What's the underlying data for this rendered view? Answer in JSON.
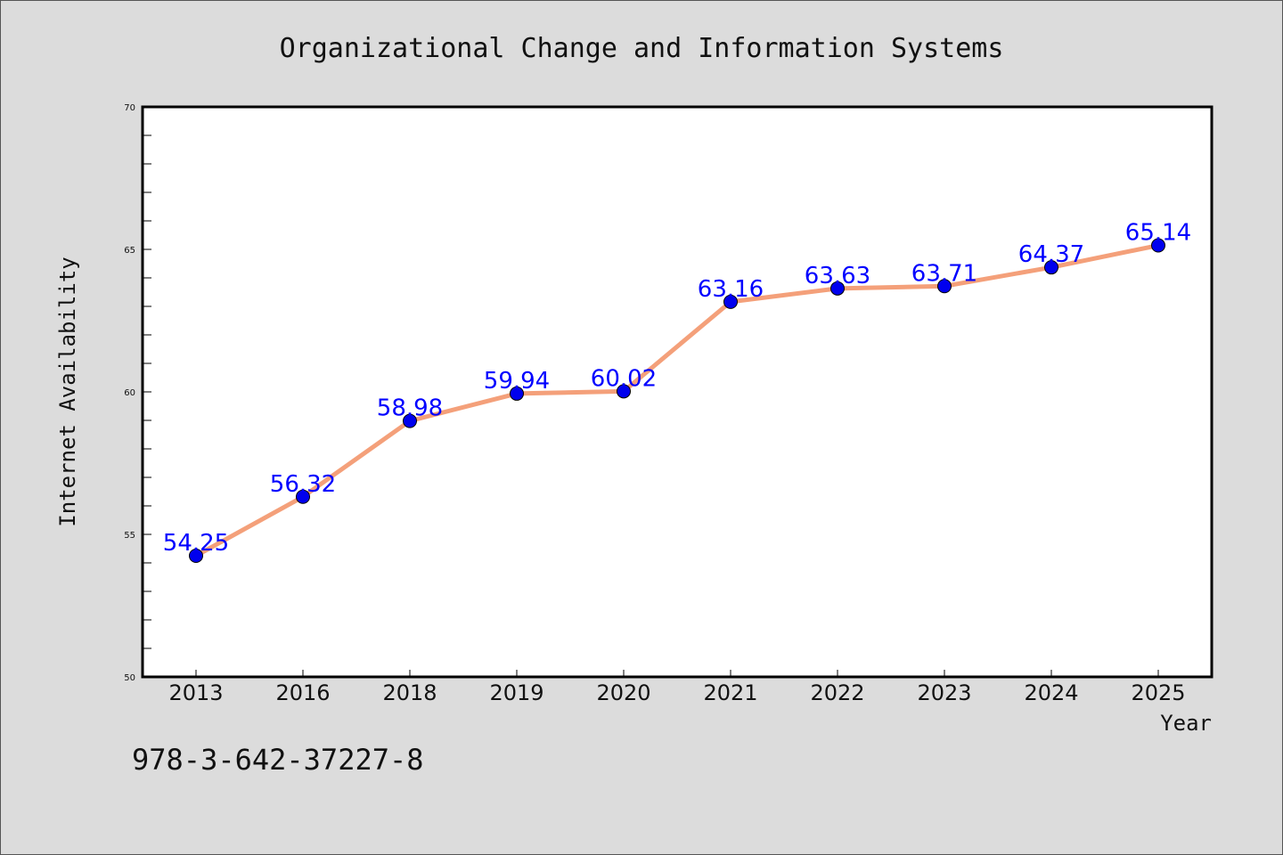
{
  "chart_data": {
    "type": "line",
    "title": "Organizational Change and Information Systems",
    "xlabel": "Year",
    "ylabel": "Internet Availability",
    "categories": [
      "2013",
      "2016",
      "2018",
      "2019",
      "2020",
      "2021",
      "2022",
      "2023",
      "2024",
      "2025"
    ],
    "series": [
      {
        "values": [
          54.25,
          56.32,
          58.98,
          59.94,
          60.02,
          63.16,
          63.63,
          63.71,
          64.37,
          65.14
        ],
        "labels": [
          "54.25",
          "56.32",
          "58.98",
          "59.94",
          "60.02",
          "63.16",
          "63.63",
          "63.71",
          "64.37",
          "65.14"
        ],
        "line_color": "#f4a07a",
        "marker_color": "#0000ee"
      }
    ],
    "ylim": [
      50,
      70
    ],
    "yticks": [
      "50",
      "55",
      "60",
      "65",
      "70"
    ],
    "grid": false,
    "legend": "none"
  },
  "footnote": "978-3-642-37227-8",
  "colors": {
    "background": "#dcdcdc",
    "plot_background": "#ffffff",
    "label_color": "#0000ff"
  }
}
